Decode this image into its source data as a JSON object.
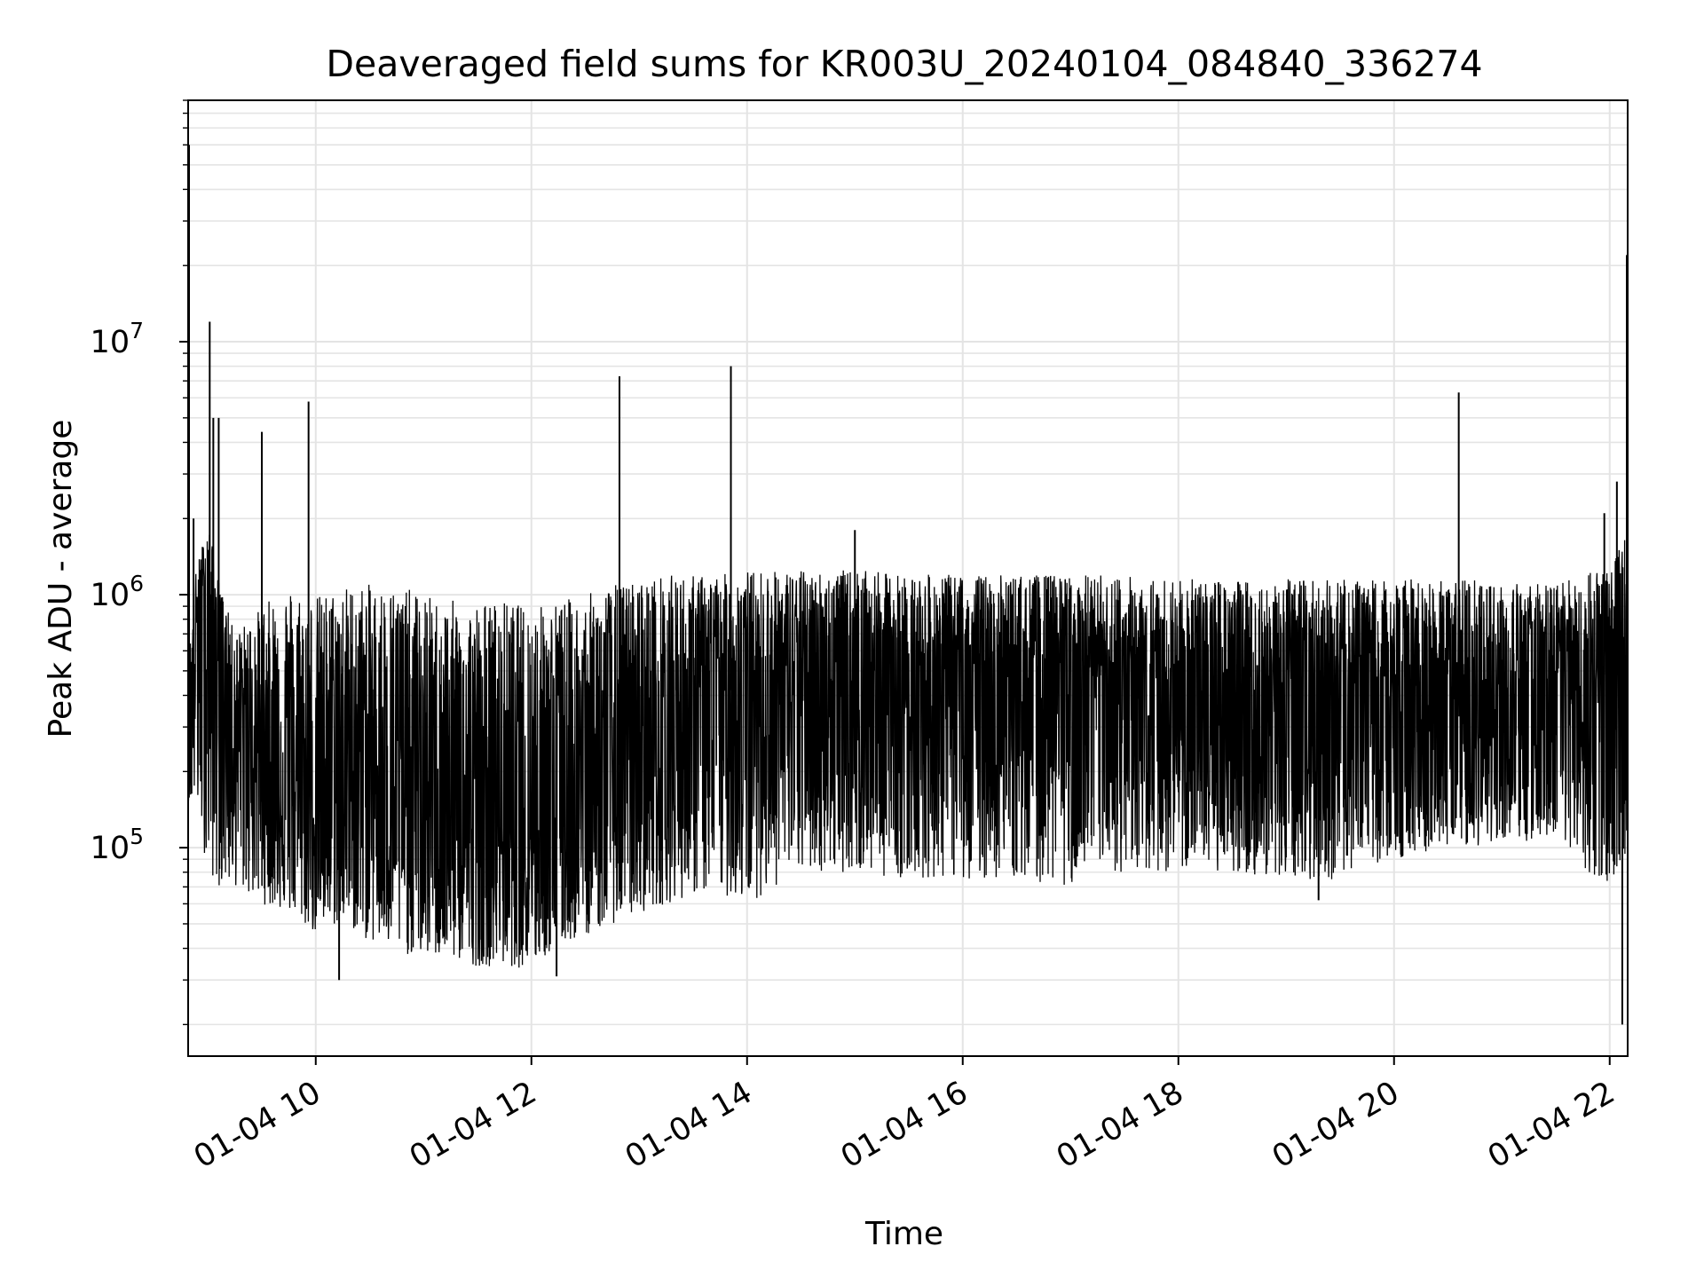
{
  "chart_data": {
    "type": "line",
    "title": "Deaveraged field sums for KR003U_20240104_084840_336274",
    "xlabel": "Time",
    "ylabel": "Peak ADU - average",
    "y_scale": "log",
    "ylim": [
      15000,
      90000000
    ],
    "xlim": [
      "01-04 08:49",
      "01-04 22:10"
    ],
    "x_ticks": [
      {
        "value": "01-04 10:00",
        "label": "01-04 10"
      },
      {
        "value": "01-04 12:00",
        "label": "01-04 12"
      },
      {
        "value": "01-04 14:00",
        "label": "01-04 14"
      },
      {
        "value": "01-04 16:00",
        "label": "01-04 16"
      },
      {
        "value": "01-04 18:00",
        "label": "01-04 18"
      },
      {
        "value": "01-04 20:00",
        "label": "01-04 20"
      },
      {
        "value": "01-04 22:00",
        "label": "01-04 22"
      }
    ],
    "y_ticks": [
      {
        "value": 100000,
        "base": "10",
        "exp": "5"
      },
      {
        "value": 1000000,
        "base": "10",
        "exp": "6"
      },
      {
        "value": 10000000,
        "base": "10",
        "exp": "7"
      }
    ],
    "grid": true,
    "legend": "none",
    "series_color": "#000000",
    "series": [
      {
        "x": [
          "01-04 08:49",
          "01-04 08:53",
          "01-04 09:00",
          "01-04 09:05",
          "01-04 09:15",
          "01-04 09:30",
          "01-04 09:45",
          "01-04 10:00",
          "01-04 10:15",
          "01-04 10:30",
          "01-04 10:45",
          "01-04 11:00",
          "01-04 11:15",
          "01-04 11:30",
          "01-04 11:45",
          "01-04 12:00",
          "01-04 12:15",
          "01-04 12:30",
          "01-04 12:45",
          "01-04 13:00",
          "01-04 13:15",
          "01-04 13:30",
          "01-04 13:45",
          "01-04 14:00",
          "01-04 14:30",
          "01-04 15:00",
          "01-04 15:30",
          "01-04 16:00",
          "01-04 16:30",
          "01-04 17:00",
          "01-04 17:30",
          "01-04 18:00",
          "01-04 18:30",
          "01-04 19:00",
          "01-04 19:30",
          "01-04 20:00",
          "01-04 20:30",
          "01-04 21:00",
          "01-04 21:30",
          "01-04 22:00",
          "01-04 22:10"
        ],
        "y": [
          180000,
          800000,
          900000,
          700000,
          350000,
          250000,
          200000,
          150000,
          200000,
          220000,
          180000,
          150000,
          140000,
          130000,
          140000,
          150000,
          170000,
          180000,
          200000,
          250000,
          300000,
          350000,
          400000,
          450000,
          450000,
          450000,
          450000,
          450000,
          450000,
          450000,
          420000,
          400000,
          380000,
          350000,
          350000,
          380000,
          400000,
          380000,
          350000,
          500000,
          700000
        ],
        "lo": [
          150000,
          150000,
          80000,
          70000,
          70000,
          60000,
          55000,
          45000,
          50000,
          42000,
          38000,
          37000,
          36000,
          34000,
          34000,
          33000,
          40000,
          45000,
          50000,
          55000,
          60000,
          65000,
          65000,
          60000,
          80000,
          80000,
          75000,
          75000,
          75000,
          70000,
          80000,
          80000,
          80000,
          75000,
          75000,
          90000,
          100000,
          100000,
          100000,
          65000,
          100000
        ],
        "hi": [
          600000,
          1200000,
          2000000,
          1200000,
          700000,
          900000,
          1100000,
          1000000,
          1100000,
          1100000,
          1100000,
          1000000,
          950000,
          950000,
          950000,
          900000,
          950000,
          1000000,
          1100000,
          1150000,
          1200000,
          1200000,
          1200000,
          1250000,
          1250000,
          1250000,
          1200000,
          1200000,
          1200000,
          1200000,
          1200000,
          1150000,
          1150000,
          1150000,
          1150000,
          1150000,
          1150000,
          1150000,
          1100000,
          1300000,
          1800000
        ],
        "spikes": [
          {
            "x": "01-04 08:49",
            "y": 60000000
          },
          {
            "x": "01-04 08:52",
            "y": 2000000
          },
          {
            "x": "01-04 09:01",
            "y": 12000000
          },
          {
            "x": "01-04 09:03",
            "y": 5000000
          },
          {
            "x": "01-04 09:06",
            "y": 5000000
          },
          {
            "x": "01-04 09:30",
            "y": 4400000
          },
          {
            "x": "01-04 09:56",
            "y": 5800000
          },
          {
            "x": "01-04 12:49",
            "y": 7300000
          },
          {
            "x": "01-04 13:51",
            "y": 8000000
          },
          {
            "x": "01-04 15:00",
            "y": 1800000
          },
          {
            "x": "01-04 20:36",
            "y": 6300000
          },
          {
            "x": "01-04 21:57",
            "y": 2100000
          },
          {
            "x": "01-04 22:04",
            "y": 2800000
          },
          {
            "x": "01-04 22:12",
            "y": 22000000
          },
          {
            "x": "01-04 10:13",
            "y": 30000
          },
          {
            "x": "01-04 12:14",
            "y": 31000
          },
          {
            "x": "01-04 19:18",
            "y": 62000
          },
          {
            "x": "01-04 22:07",
            "y": 20000
          }
        ]
      }
    ]
  }
}
